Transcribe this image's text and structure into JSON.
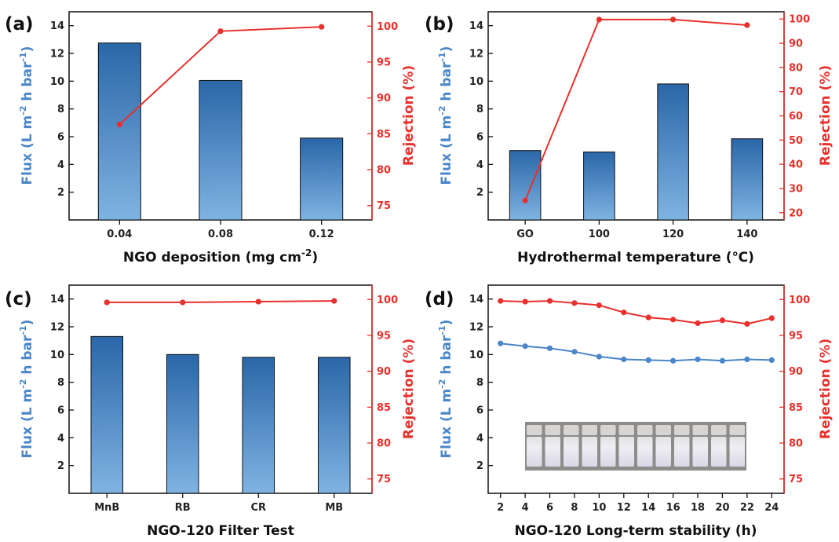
{
  "colors": {
    "flux": "#4a86c8",
    "flux_dark": "#1f5c99",
    "flux_light": "#7fb0de",
    "rejection": "#e8302c",
    "axis": "#111111"
  },
  "chart_data": [
    {
      "type": "bar",
      "panel": "(a)",
      "categories": [
        "0.04",
        "0.08",
        "0.12"
      ],
      "xlabel": "NGO deposition (mg cm-2)",
      "xlabel_parts": {
        "base": "NGO deposition (mg cm",
        "sup": "-2",
        "tail": ")"
      },
      "ylabel_left": "Flux (L m-2 h bar-1)",
      "ylabel_right": "Rejection (%)",
      "ylim_left": [
        0,
        15
      ],
      "yticks_left": [
        2,
        4,
        6,
        8,
        10,
        12,
        14
      ],
      "ylim_right": [
        73,
        102
      ],
      "yticks_right": [
        75,
        80,
        85,
        90,
        95,
        100
      ],
      "series": [
        {
          "name": "Flux",
          "kind": "bar",
          "axis": "left",
          "values": [
            12.75,
            10.05,
            5.9
          ]
        },
        {
          "name": "Rejection",
          "kind": "line",
          "axis": "right",
          "values": [
            86.3,
            99.3,
            99.9
          ]
        }
      ]
    },
    {
      "type": "bar",
      "panel": "(b)",
      "categories": [
        "GO",
        "100",
        "120",
        "140"
      ],
      "xlabel": "Hydrothermal  temperature (℃)",
      "ylabel_left": "Flux (L m-2 h bar-1)",
      "ylabel_right": "Rejection (%)",
      "ylim_left": [
        0,
        15
      ],
      "yticks_left": [
        2,
        4,
        6,
        8,
        10,
        12,
        14
      ],
      "ylim_right": [
        17,
        103
      ],
      "yticks_right": [
        20,
        30,
        40,
        50,
        60,
        70,
        80,
        90,
        100
      ],
      "series": [
        {
          "name": "Flux",
          "kind": "bar",
          "axis": "left",
          "values": [
            5.0,
            4.9,
            9.8,
            5.85
          ]
        },
        {
          "name": "Rejection",
          "kind": "line",
          "axis": "right",
          "values": [
            25.0,
            99.8,
            99.8,
            97.5
          ]
        }
      ]
    },
    {
      "type": "bar",
      "panel": "(c)",
      "categories": [
        "MnB",
        "RB",
        "CR",
        "MB"
      ],
      "xlabel": "NGO-120 Filter Test",
      "ylabel_left": "Flux (L m-2 h bar-1)",
      "ylabel_right": "Rejection (%)",
      "ylim_left": [
        0,
        15
      ],
      "yticks_left": [
        2,
        4,
        6,
        8,
        10,
        12,
        14
      ],
      "ylim_right": [
        73,
        102
      ],
      "yticks_right": [
        75,
        80,
        85,
        90,
        95,
        100
      ],
      "series": [
        {
          "name": "Flux",
          "kind": "bar",
          "axis": "left",
          "values": [
            11.3,
            10.0,
            9.8,
            9.8
          ]
        },
        {
          "name": "Rejection",
          "kind": "line",
          "axis": "right",
          "values": [
            99.6,
            99.6,
            99.7,
            99.8
          ]
        }
      ]
    },
    {
      "type": "line",
      "panel": "(d)",
      "x": [
        2,
        4,
        6,
        8,
        10,
        12,
        14,
        16,
        18,
        20,
        22,
        24
      ],
      "categories": [
        "2",
        "4",
        "6",
        "8",
        "10",
        "12",
        "14",
        "16",
        "18",
        "20",
        "22",
        "24"
      ],
      "xlabel": "NGO-120 Long-term stability (h)",
      "ylabel_left": "Flux (L m-2 h bar-1)",
      "ylabel_right": "Rejection (%)",
      "ylim_left": [
        0,
        15
      ],
      "yticks_left": [
        2,
        4,
        6,
        8,
        10,
        12,
        14
      ],
      "ylim_right": [
        73,
        102
      ],
      "yticks_right": [
        75,
        80,
        85,
        90,
        95,
        100
      ],
      "series": [
        {
          "name": "Flux",
          "kind": "line",
          "axis": "left",
          "values": [
            10.8,
            10.6,
            10.45,
            10.2,
            9.85,
            9.65,
            9.6,
            9.55,
            9.65,
            9.55,
            9.65,
            9.6
          ]
        },
        {
          "name": "Rejection",
          "kind": "line",
          "axis": "right",
          "values": [
            99.8,
            99.7,
            99.8,
            99.5,
            99.2,
            98.2,
            97.5,
            97.2,
            96.7,
            97.1,
            96.6,
            97.4
          ]
        }
      ],
      "inset": {
        "vials": 12
      }
    }
  ]
}
